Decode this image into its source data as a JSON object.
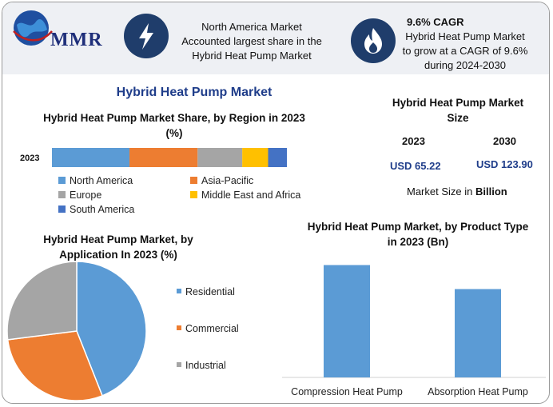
{
  "header": {
    "logo_text": "MMR",
    "region_note": "North America Market Accounted largest share in the Hybrid Heat Pump Market",
    "region_note_lines": [
      "North America Market",
      "Accounted largest share in the",
      "Hybrid Heat Pump Market"
    ],
    "cagr_title": "9.6% CAGR",
    "cagr_lines": [
      "Hybrid Heat Pump Market",
      "to grow at a CAGR of 9.6%",
      "during 2024-2030"
    ],
    "icons": [
      "globe-logo-icon",
      "lightning-bolt-icon",
      "flame-icon"
    ]
  },
  "main_title": "Hybrid Heat Pump Market",
  "colors": {
    "blue": "#5b9bd5",
    "orange": "#ed7d31",
    "gray": "#a5a5a5",
    "yellow": "#ffc000",
    "dark_blue": "#4472c4",
    "title_blue": "#1f3d8a",
    "icon_navy": "#1f3d6b"
  },
  "market_size": {
    "title_lines": [
      "Hybrid Heat Pump Market",
      "Size"
    ],
    "year_1": "2023",
    "year_2": "2030",
    "value_1": "USD 65.22",
    "value_2": "USD 123.90",
    "note_prefix": "Market Size in ",
    "note_bold": "Billion"
  },
  "chart_data": [
    {
      "type": "bar",
      "orientation": "horizontal-stacked",
      "title": "Hybrid Heat Pump Market Share, by Region in 2023 (%)",
      "categories": [
        "2023"
      ],
      "series": [
        {
          "name": "North America",
          "values": [
            33
          ]
        },
        {
          "name": "Asia-Pacific",
          "values": [
            29
          ]
        },
        {
          "name": "Europe",
          "values": [
            19
          ]
        },
        {
          "name": "Middle East and Africa",
          "values": [
            11
          ]
        },
        {
          "name": "South America",
          "values": [
            8
          ]
        }
      ],
      "legend": "bottom"
    },
    {
      "type": "pie",
      "title": "Hybrid Heat Pump Market, by Application In 2023 (%)",
      "labels": [
        "Residential",
        "Commercial",
        "Industrial"
      ],
      "values": [
        44,
        29,
        27
      ],
      "legend": "right"
    },
    {
      "type": "bar",
      "title": "Hybrid Heat Pump Market, by Product Type in 2023 (Bn)",
      "categories": [
        "Compression Heat Pump",
        "Absorption Heat Pump"
      ],
      "values": [
        36.5,
        28.7
      ],
      "ylim": [
        0,
        40
      ]
    }
  ]
}
